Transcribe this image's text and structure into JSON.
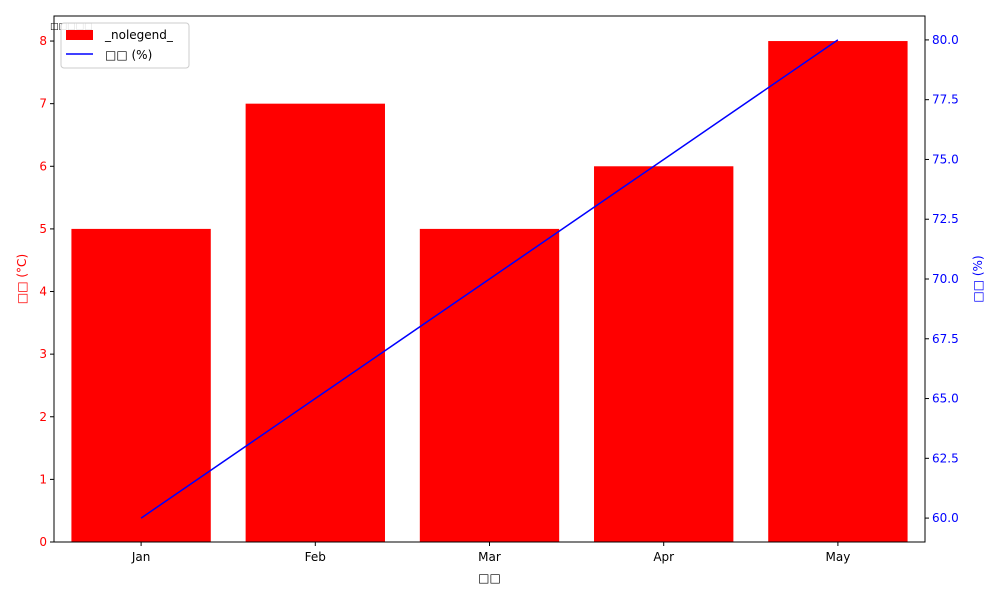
{
  "chart_data": {
    "type": "bar",
    "title": "□□□□□",
    "categories": [
      "Jan",
      "Feb",
      "Mar",
      "Apr",
      "May"
    ],
    "xlabel": "□□",
    "series": [
      {
        "name": "_nolegend_",
        "chart_type": "bar",
        "axis": "left",
        "values": [
          5,
          7,
          5,
          6,
          8
        ],
        "color": "#ff0000"
      },
      {
        "name": "□□ (%)",
        "chart_type": "line",
        "axis": "right",
        "values": [
          60,
          65,
          70,
          75,
          80
        ],
        "color": "#0000ff"
      }
    ],
    "y_left": {
      "label": "□□ (°C)",
      "ylim": [
        0,
        8.4
      ],
      "ticks": [
        0,
        1,
        2,
        3,
        4,
        5,
        6,
        7,
        8
      ],
      "color": "#ff0000"
    },
    "y_right": {
      "label": "□□ (%)",
      "ylim": [
        59,
        81
      ],
      "ticks": [
        "60.0",
        "62.5",
        "65.0",
        "67.5",
        "70.0",
        "72.5",
        "75.0",
        "77.5",
        "80.0"
      ],
      "color": "#0000ff"
    },
    "grid": false,
    "legend_position": "top-left"
  }
}
